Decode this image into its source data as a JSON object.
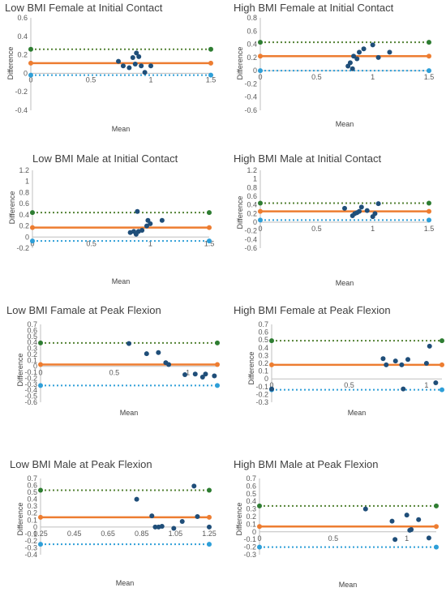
{
  "chart_data": [
    {
      "type": "scatter",
      "title": "Low BMI Female at Initial Contact",
      "xlabel": "Mean",
      "ylabel": "Difference",
      "xlim": [
        0,
        1.5
      ],
      "ylim": [
        -0.4,
        0.6
      ],
      "xticks": [
        "0",
        "0.5",
        "1",
        "1.5"
      ],
      "yticks": [
        "-0.4",
        "-0.2",
        "0",
        "0.2",
        "0.4",
        "0.6"
      ],
      "xtick_values": [
        0,
        0.5,
        1,
        1.5
      ],
      "ytick_values": [
        -0.4,
        -0.2,
        0,
        0.2,
        0.4,
        0.6
      ],
      "points": [
        [
          0.73,
          0.13
        ],
        [
          0.77,
          0.08
        ],
        [
          0.82,
          0.06
        ],
        [
          0.85,
          0.17
        ],
        [
          0.87,
          0.1
        ],
        [
          0.88,
          0.22
        ],
        [
          0.9,
          0.18
        ],
        [
          0.92,
          0.08
        ],
        [
          0.95,
          0.01
        ],
        [
          1.0,
          0.08
        ]
      ],
      "mean_line": 0.11,
      "upper_loa": 0.26,
      "lower_loa": -0.02
    },
    {
      "type": "scatter",
      "title": "High BMI Female at Initial Contact",
      "xlabel": "Mean",
      "ylabel": "Difference",
      "xlim": [
        0,
        1.5
      ],
      "ylim": [
        -0.6,
        0.8
      ],
      "xticks": [
        "0",
        "0.5",
        "1",
        "1.5"
      ],
      "yticks": [
        "-0.6",
        "-0.4",
        "-0.2",
        "0",
        "0.2",
        "0.4",
        "0.6",
        "0.8"
      ],
      "xtick_values": [
        0,
        0.5,
        1,
        1.5
      ],
      "ytick_values": [
        -0.6,
        -0.4,
        -0.2,
        0,
        0.2,
        0.4,
        0.6,
        0.8
      ],
      "points": [
        [
          0.78,
          0.07
        ],
        [
          0.8,
          0.12
        ],
        [
          0.82,
          0.03
        ],
        [
          0.83,
          0.22
        ],
        [
          0.86,
          0.18
        ],
        [
          0.88,
          0.28
        ],
        [
          0.92,
          0.33
        ],
        [
          1.0,
          0.39
        ],
        [
          1.05,
          0.2
        ],
        [
          1.15,
          0.28
        ]
      ],
      "mean_line": 0.22,
      "upper_loa": 0.43,
      "lower_loa": 0.0
    },
    {
      "type": "scatter",
      "title": "Low BMI Male at Initial Contact",
      "xlabel": "Mean",
      "ylabel": "Difference",
      "xlim": [
        0,
        1.5
      ],
      "ylim": [
        -0.2,
        1.2
      ],
      "xticks": [
        "0",
        "0.5",
        "1",
        "1.5"
      ],
      "yticks": [
        "-0.2",
        "0",
        "0.2",
        "0.4",
        "0.6",
        "0.8",
        "1",
        "1.2"
      ],
      "xtick_values": [
        0,
        0.5,
        1,
        1.5
      ],
      "ytick_values": [
        -0.2,
        0,
        0.2,
        0.4,
        0.6,
        0.8,
        1,
        1.2
      ],
      "points": [
        [
          0.83,
          0.08
        ],
        [
          0.86,
          0.1
        ],
        [
          0.88,
          0.05
        ],
        [
          0.89,
          0.46
        ],
        [
          0.9,
          0.1
        ],
        [
          0.93,
          0.12
        ],
        [
          0.97,
          0.2
        ],
        [
          0.98,
          0.3
        ],
        [
          1.0,
          0.24
        ],
        [
          1.1,
          0.3
        ]
      ],
      "mean_line": 0.17,
      "upper_loa": 0.44,
      "lower_loa": -0.07
    },
    {
      "type": "scatter",
      "title": "High BMI Male at Initial Contact",
      "xlabel": "Mean",
      "ylabel": "Difference",
      "xlim": [
        0,
        1.5
      ],
      "ylim": [
        -0.6,
        1.2
      ],
      "xticks": [
        "0",
        "0.5",
        "1",
        "1.5"
      ],
      "yticks": [
        "-0.6",
        "-0.4",
        "-0.2",
        "0",
        "0.2",
        "0.4",
        "0.6",
        "0.8",
        "1",
        "1.2"
      ],
      "xtick_values": [
        0,
        0.5,
        1,
        1.5
      ],
      "ytick_values": [
        -0.6,
        -0.4,
        -0.2,
        0,
        0.2,
        0.4,
        0.6,
        0.8,
        1,
        1.2
      ],
      "points": [
        [
          0.75,
          0.32
        ],
        [
          0.82,
          0.15
        ],
        [
          0.84,
          0.2
        ],
        [
          0.86,
          0.22
        ],
        [
          0.88,
          0.25
        ],
        [
          0.9,
          0.35
        ],
        [
          0.95,
          0.27
        ],
        [
          1.0,
          0.13
        ],
        [
          1.02,
          0.2
        ],
        [
          1.05,
          0.43
        ]
      ],
      "mean_line": 0.25,
      "upper_loa": 0.44,
      "lower_loa": 0.05
    },
    {
      "type": "scatter",
      "title": "Low BMI Famale at Peak Flexion",
      "xlabel": "Mean",
      "ylabel": "Difference",
      "xlim": [
        0,
        1.2
      ],
      "ylim": [
        -0.6,
        0.7
      ],
      "xticks": [
        "0",
        "0.5",
        "1"
      ],
      "yticks": [
        "-0.6",
        "-0.5",
        "-0.4",
        "-0.3",
        "-0.2",
        "-0.1",
        "0",
        "0.1",
        "0.2",
        "0.3",
        "0.4",
        "0.5",
        "0.6",
        "0.7"
      ],
      "xtick_values": [
        0,
        0.5,
        1
      ],
      "ytick_values": [
        -0.6,
        -0.5,
        -0.4,
        -0.3,
        -0.2,
        -0.1,
        0,
        0.1,
        0.2,
        0.3,
        0.4,
        0.5,
        0.6,
        0.7
      ],
      "points": [
        [
          0.6,
          0.38
        ],
        [
          0.72,
          0.21
        ],
        [
          0.8,
          0.23
        ],
        [
          0.85,
          0.06
        ],
        [
          0.87,
          0.03
        ],
        [
          0.98,
          -0.14
        ],
        [
          1.05,
          -0.13
        ],
        [
          1.1,
          -0.18
        ],
        [
          1.12,
          -0.13
        ],
        [
          1.18,
          -0.16
        ]
      ],
      "mean_line": 0.03,
      "upper_loa": 0.39,
      "lower_loa": -0.32
    },
    {
      "type": "scatter",
      "title": "High BMI Female at Peak Flexion",
      "xlabel": "Mean",
      "ylabel": "Difference",
      "xlim": [
        0,
        1.1
      ],
      "ylim": [
        -0.3,
        0.7
      ],
      "xticks": [
        "0",
        "0.5",
        "1"
      ],
      "yticks": [
        "-0.3",
        "-0.2",
        "-0.1",
        "0",
        "0.1",
        "0.2",
        "0.3",
        "0.4",
        "0.5",
        "0.6",
        "0.7"
      ],
      "xtick_values": [
        0,
        0.5,
        1
      ],
      "ytick_values": [
        -0.3,
        -0.2,
        -0.1,
        0,
        0.1,
        0.2,
        0.3,
        0.4,
        0.5,
        0.6,
        0.7
      ],
      "points": [
        [
          0.0,
          -0.13
        ],
        [
          0.72,
          0.26
        ],
        [
          0.74,
          0.18
        ],
        [
          0.8,
          0.23
        ],
        [
          0.84,
          0.18
        ],
        [
          0.85,
          -0.13
        ],
        [
          0.88,
          0.25
        ],
        [
          1.0,
          0.2
        ],
        [
          1.02,
          0.42
        ],
        [
          1.06,
          -0.05
        ]
      ],
      "mean_line": 0.18,
      "upper_loa": 0.49,
      "lower_loa": -0.14
    },
    {
      "type": "scatter",
      "title": "Low BMI Male at Peak Flexion",
      "xlabel": "Mean",
      "ylabel": "Difference",
      "xlim": [
        0.25,
        1.25
      ],
      "ylim": [
        -0.4,
        0.7
      ],
      "xticks": [
        "0.25",
        "0.45",
        "0.65",
        "0.85",
        "1.05",
        "1.25"
      ],
      "yticks": [
        "-0.4",
        "-0.3",
        "-0.2",
        "-0.1",
        "0",
        "0.1",
        "0.2",
        "0.3",
        "0.4",
        "0.5",
        "0.6",
        "0.7"
      ],
      "xtick_values": [
        0.25,
        0.45,
        0.65,
        0.85,
        1.05,
        1.25
      ],
      "ytick_values": [
        -0.4,
        -0.3,
        -0.2,
        -0.1,
        0,
        0.1,
        0.2,
        0.3,
        0.4,
        0.5,
        0.6,
        0.7
      ],
      "points": [
        [
          0.82,
          0.4
        ],
        [
          0.91,
          0.16
        ],
        [
          0.93,
          0.0
        ],
        [
          0.95,
          0.0
        ],
        [
          0.97,
          0.01
        ],
        [
          1.04,
          -0.02
        ],
        [
          1.09,
          0.08
        ],
        [
          1.16,
          0.59
        ],
        [
          1.18,
          0.15
        ],
        [
          1.25,
          0.0
        ]
      ],
      "mean_line": 0.14,
      "upper_loa": 0.53,
      "lower_loa": -0.25
    },
    {
      "type": "scatter",
      "title": "High BMI Male at Peak Flexion",
      "xlabel": "Mean",
      "ylabel": "Difference",
      "xlim": [
        0,
        1.2
      ],
      "ylim": [
        -0.3,
        0.7
      ],
      "xticks": [
        "0",
        "0.5",
        "1"
      ],
      "yticks": [
        "-0.3",
        "-0.2",
        "-0.1",
        "0",
        "0.1",
        "0.2",
        "0.3",
        "0.4",
        "0.5",
        "0.6",
        "0.7"
      ],
      "xtick_values": [
        0,
        0.5,
        1
      ],
      "ytick_values": [
        -0.3,
        -0.2,
        -0.1,
        0,
        0.1,
        0.2,
        0.3,
        0.4,
        0.5,
        0.6,
        0.7
      ],
      "points": [
        [
          0.72,
          0.3
        ],
        [
          0.9,
          0.14
        ],
        [
          0.92,
          -0.1
        ],
        [
          1.0,
          0.22
        ],
        [
          1.02,
          0.02
        ],
        [
          1.03,
          0.03
        ],
        [
          1.08,
          0.16
        ],
        [
          1.15,
          -0.08
        ]
      ],
      "mean_line": 0.07,
      "upper_loa": 0.34,
      "lower_loa": -0.2
    }
  ],
  "colors": {
    "points": "#1f4e79",
    "mean_line": "#ed7d31",
    "upper_loa": "#548235",
    "lower_loa": "#2e9fd8",
    "upper_marker": "#2e7d32",
    "axis": "#bfbfbf",
    "text": "#404040"
  }
}
